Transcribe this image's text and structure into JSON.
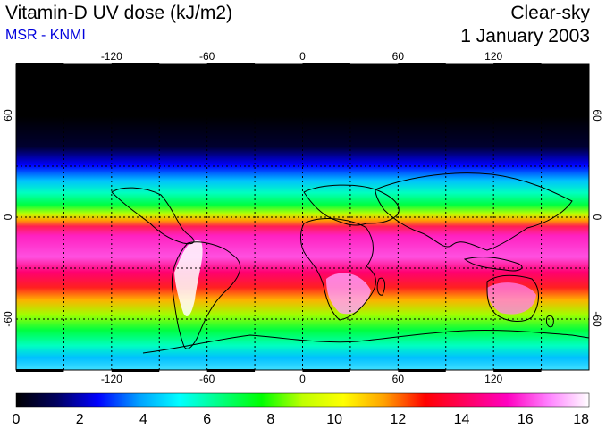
{
  "header": {
    "title": "Vitamin-D UV dose (kJ/m2)",
    "credit": "MSR - KNMI",
    "condition": "Clear-sky",
    "date": "1 January 2003"
  },
  "colors": {
    "credit_text": "#0000dd",
    "colormap": [
      "#000000",
      "#000060",
      "#0000ff",
      "#00a0ff",
      "#00ffff",
      "#00ff80",
      "#00ff00",
      "#c0ff00",
      "#ffff00",
      "#ffa000",
      "#ff0000",
      "#ff0060",
      "#ff00c0",
      "#ff80ff",
      "#ffffff"
    ]
  },
  "map": {
    "lon_ticks": [
      "-120",
      "-60",
      "0",
      "60",
      "120"
    ],
    "lat_ticks": [
      "60",
      "0",
      "-60"
    ],
    "lat_ticks_right": [
      "60",
      "0",
      "-60"
    ]
  },
  "colorbar": {
    "labels": [
      "0",
      "2",
      "4",
      "6",
      "8",
      "10",
      "12",
      "14",
      "16",
      "18"
    ],
    "range": [
      0,
      18
    ]
  }
}
